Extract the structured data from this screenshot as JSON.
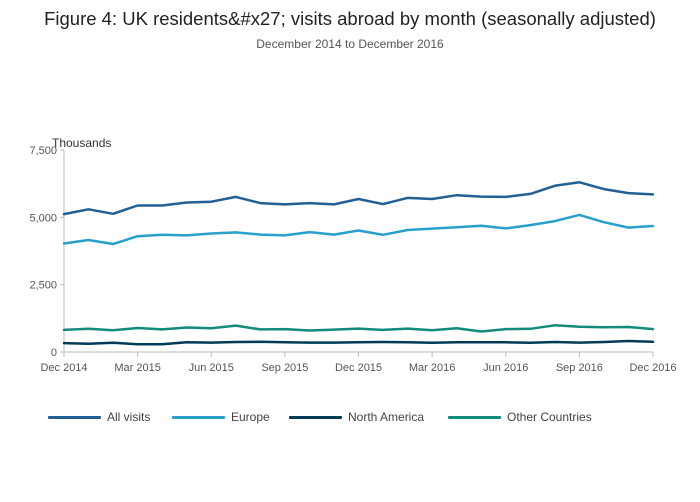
{
  "chart_data": {
    "type": "line",
    "title": "Figure 4: UK residents&#x27; visits abroad by month (seasonally adjusted)",
    "subtitle": "December 2014 to December 2016",
    "ylabel": "Thousands",
    "xlabel": "",
    "ylim": [
      0,
      7500
    ],
    "yticks": [
      0,
      2500,
      5000,
      7500
    ],
    "ytick_labels": [
      "0",
      "2,500",
      "5,000",
      "7,500"
    ],
    "xtick_labels": [
      "Dec 2014",
      "Mar 2015",
      "Jun 2015",
      "Sep 2015",
      "Dec 2015",
      "Mar 2016",
      "Jun 2016",
      "Sep 2016",
      "Dec 2016"
    ],
    "xtick_positions": [
      0,
      3,
      6,
      9,
      12,
      15,
      18,
      21,
      24
    ],
    "x": [
      "Dec 2014",
      "Jan 2015",
      "Feb 2015",
      "Mar 2015",
      "Apr 2015",
      "May 2015",
      "Jun 2015",
      "Jul 2015",
      "Aug 2015",
      "Sep 2015",
      "Oct 2015",
      "Nov 2015",
      "Dec 2015",
      "Jan 2016",
      "Feb 2016",
      "Mar 2016",
      "Apr 2016",
      "May 2016",
      "Jun 2016",
      "Jul 2016",
      "Aug 2016",
      "Sep 2016",
      "Oct 2016",
      "Nov 2016",
      "Dec 2016"
    ],
    "grid": false,
    "legend_position": "bottom",
    "series": [
      {
        "name": "All visits",
        "color": "#206095",
        "values": [
          5120,
          5300,
          5130,
          5440,
          5440,
          5550,
          5580,
          5760,
          5530,
          5480,
          5530,
          5480,
          5680,
          5490,
          5720,
          5680,
          5820,
          5770,
          5760,
          5870,
          6170,
          6300,
          6050,
          5900,
          5850
        ]
      },
      {
        "name": "Europe",
        "color": "#27a0cc",
        "values": [
          4030,
          4160,
          4010,
          4300,
          4350,
          4330,
          4400,
          4440,
          4360,
          4330,
          4450,
          4360,
          4510,
          4350,
          4530,
          4580,
          4630,
          4690,
          4590,
          4710,
          4860,
          5090,
          4820,
          4620,
          4680
        ]
      },
      {
        "name": "North America",
        "color": "#003c57",
        "values": [
          330,
          310,
          340,
          290,
          290,
          360,
          350,
          370,
          380,
          360,
          350,
          350,
          360,
          370,
          360,
          340,
          360,
          360,
          360,
          340,
          370,
          350,
          370,
          410,
          380
        ]
      },
      {
        "name": "Other Countries",
        "color": "#118c7b",
        "values": [
          820,
          860,
          810,
          890,
          840,
          910,
          880,
          980,
          840,
          850,
          800,
          830,
          870,
          820,
          870,
          810,
          880,
          760,
          850,
          860,
          990,
          940,
          920,
          930,
          850
        ]
      }
    ]
  }
}
